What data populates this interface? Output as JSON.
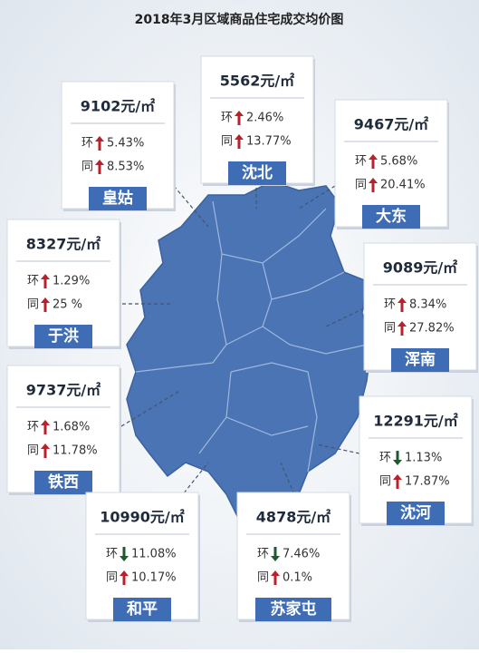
{
  "title": "2018年3月区域商品住宅成交均价图",
  "districts": [
    {
      "name": "皇姑",
      "price": "9102元/㎡",
      "mom_label": "环",
      "mom_dir": "up",
      "mom": "5.43%",
      "yoy_label": "同",
      "yoy_dir": "up",
      "yoy": "8.53%"
    },
    {
      "name": "沈北",
      "price": "5562元/㎡",
      "mom_label": "环",
      "mom_dir": "up",
      "mom": "2.46%",
      "yoy_label": "同",
      "yoy_dir": "up",
      "yoy": "13.77%"
    },
    {
      "name": "大东",
      "price": "9467元/㎡",
      "mom_label": "环",
      "mom_dir": "up",
      "mom": "5.68%",
      "yoy_label": "同",
      "yoy_dir": "up",
      "yoy": "20.41%"
    },
    {
      "name": "于洪",
      "price": "8327元/㎡",
      "mom_label": "环",
      "mom_dir": "up",
      "mom": "1.29%",
      "yoy_label": "同",
      "yoy_dir": "up",
      "yoy": "25 %"
    },
    {
      "name": "浑南",
      "price": "9089元/㎡",
      "mom_label": "环",
      "mom_dir": "up",
      "mom": "8.34%",
      "yoy_label": "同",
      "yoy_dir": "up",
      "yoy": "27.82%"
    },
    {
      "name": "铁西",
      "price": "9737元/㎡",
      "mom_label": "环",
      "mom_dir": "up",
      "mom": "1.68%",
      "yoy_label": "同",
      "yoy_dir": "up",
      "yoy": "11.78%"
    },
    {
      "name": "沈河",
      "price": "12291元/㎡",
      "mom_label": "环",
      "mom_dir": "down",
      "mom": "1.13%",
      "yoy_label": "同",
      "yoy_dir": "up",
      "yoy": "17.87%"
    },
    {
      "name": "和平",
      "price": "10990元/㎡",
      "mom_label": "环",
      "mom_dir": "down",
      "mom": "11.08%",
      "yoy_label": "同",
      "yoy_dir": "up",
      "yoy": "10.17%"
    },
    {
      "name": "苏家屯",
      "price": "4878元/㎡",
      "mom_label": "环",
      "mom_dir": "down",
      "mom": "7.46%",
      "yoy_label": "同",
      "yoy_dir": "up",
      "yoy": "0.1%"
    }
  ]
}
